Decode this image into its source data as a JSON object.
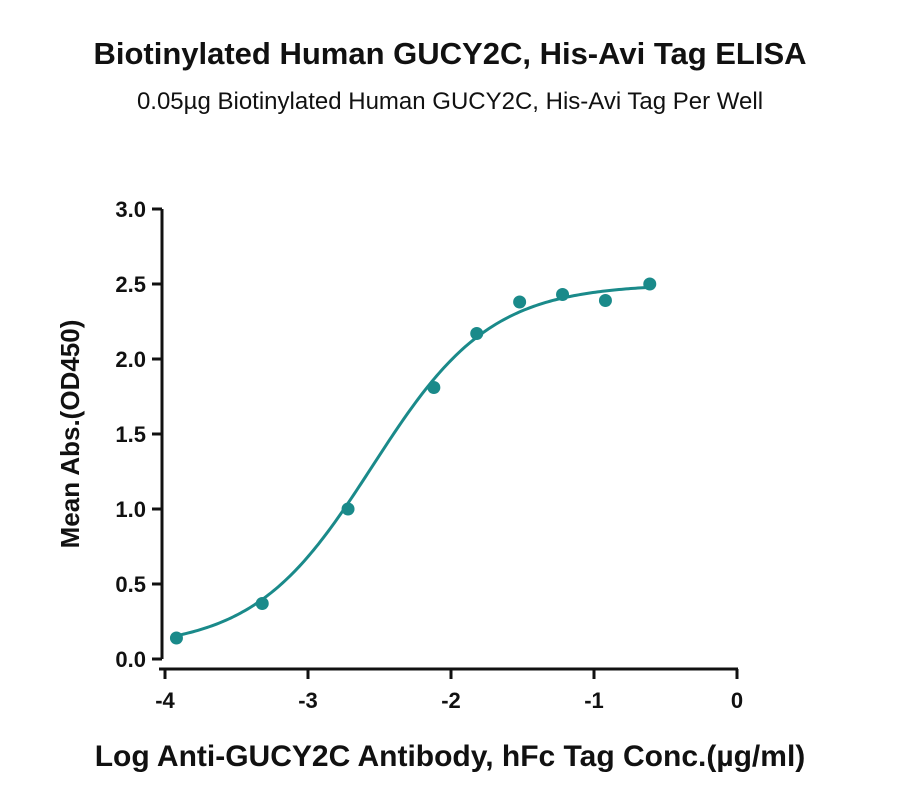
{
  "chart_data": {
    "type": "scatter",
    "title": "Biotinylated Human GUCY2C, His-Avi Tag ELISA",
    "subtitle": "0.05µg Biotinylated Human GUCY2C, His-Avi Tag Per Well",
    "xlabel": "Log Anti-GUCY2C Antibody, hFc Tag Conc.(µg/ml)",
    "ylabel": "Mean Abs.(OD450)",
    "xlim": [
      -4,
      0
    ],
    "ylim": [
      0,
      3.0
    ],
    "xticks": [
      -4,
      -3,
      -2,
      -1,
      0
    ],
    "xtick_labels": [
      "-4",
      "-3",
      "-2",
      "-1",
      "0"
    ],
    "yticks": [
      0,
      0.5,
      1.0,
      1.5,
      2.0,
      2.5,
      3.0
    ],
    "ytick_labels": [
      "0.0",
      "0.5",
      "1.0",
      "1.5",
      "2.0",
      "2.5",
      "3.0"
    ],
    "color": "#1a8a8a",
    "points": [
      {
        "x": -3.92,
        "y": 0.14
      },
      {
        "x": -3.32,
        "y": 0.37
      },
      {
        "x": -2.72,
        "y": 1.0
      },
      {
        "x": -2.12,
        "y": 1.81
      },
      {
        "x": -1.82,
        "y": 2.17
      },
      {
        "x": -1.52,
        "y": 2.38
      },
      {
        "x": -1.22,
        "y": 2.43
      },
      {
        "x": -0.92,
        "y": 2.39
      },
      {
        "x": -0.61,
        "y": 2.5
      }
    ],
    "fit": {
      "bottom": 0.07,
      "top": 2.5,
      "logEC50": -2.55,
      "hill": 1.05
    }
  }
}
